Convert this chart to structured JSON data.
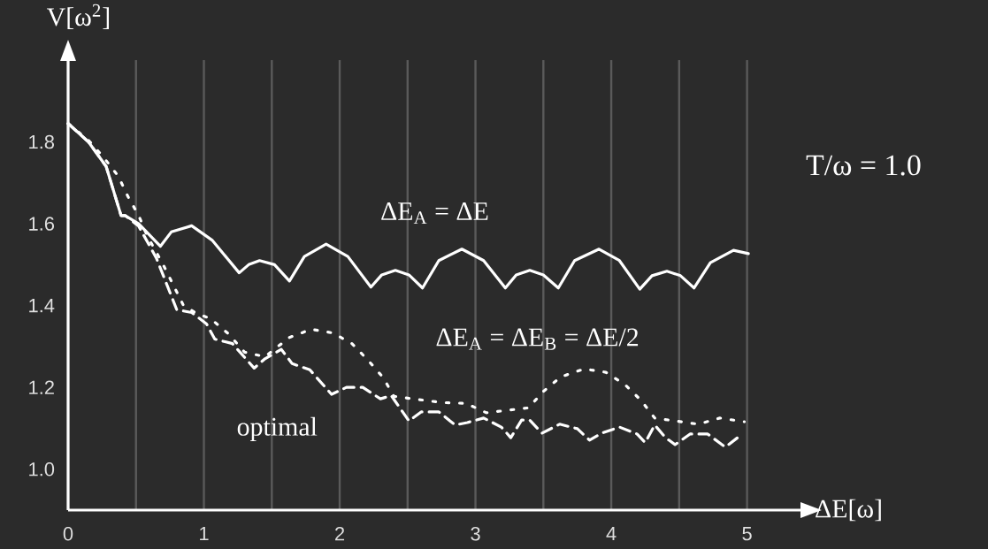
{
  "chart_data": {
    "type": "line",
    "xlabel": "ΔE[ω]",
    "ylabel": "V[ω$^{2}$]",
    "annotations": [
      "T/ω = 1.0"
    ],
    "xlim": [
      0,
      5.4
    ],
    "ylim": [
      0.9,
      2.0
    ],
    "xticks": [
      0,
      {
        "value": 0.5,
        "label": null
      },
      1,
      {
        "value": 1.5,
        "label": null
      },
      2,
      {
        "value": 2.5,
        "label": null
      },
      3,
      {
        "value": 3.5,
        "label": null
      },
      4,
      {
        "value": 4.5,
        "label": null
      },
      5
    ],
    "yticks": [
      {
        "value": 1.0,
        "label": "1.0"
      },
      1.2,
      1.4,
      1.6,
      1.8
    ],
    "grid": "x",
    "series": [
      {
        "name": "ΔE$_{A}$ = ΔE",
        "color": "#ffffff",
        "line_style": "solid",
        "x": [
          0,
          0.15,
          0.28,
          0.39,
          0.42,
          0.52,
          0.68,
          0.76,
          0.91,
          1.06,
          1.26,
          1.33,
          1.41,
          1.52,
          1.63,
          1.74,
          1.9,
          2.06,
          2.23,
          2.31,
          2.41,
          2.51,
          2.61,
          2.73,
          2.9,
          3.06,
          3.22,
          3.3,
          3.4,
          3.5,
          3.61,
          3.73,
          3.91,
          4.06,
          4.21,
          4.3,
          4.41,
          4.51,
          4.61,
          4.73,
          4.9,
          5.01
        ],
        "values": [
          1.845,
          1.8,
          1.74,
          1.62,
          1.62,
          1.6,
          1.545,
          1.58,
          1.595,
          1.56,
          1.48,
          1.5,
          1.51,
          1.5,
          1.46,
          1.52,
          1.55,
          1.52,
          1.445,
          1.475,
          1.486,
          1.475,
          1.443,
          1.51,
          1.538,
          1.51,
          1.443,
          1.475,
          1.486,
          1.475,
          1.443,
          1.51,
          1.538,
          1.51,
          1.44,
          1.473,
          1.484,
          1.473,
          1.443,
          1.505,
          1.535,
          1.527
        ]
      },
      {
        "name": "ΔE$_{A}$ = ΔE$_{B}$ = ΔE/2",
        "color": "#ffffff",
        "line_style": "dotted",
        "x": [
          0,
          0.15,
          0.26,
          0.37,
          0.44,
          0.52,
          0.58,
          0.7,
          0.85,
          0.95,
          1.05,
          1.18,
          1.3,
          1.45,
          1.63,
          1.79,
          1.95,
          2.09,
          2.21,
          2.32,
          2.4,
          2.75,
          2.93,
          3.08,
          3.39,
          3.5,
          3.63,
          3.8,
          3.96,
          4.1,
          4.22,
          4.32,
          4.64,
          4.8,
          4.98
        ],
        "values": [
          1.845,
          1.804,
          1.763,
          1.716,
          1.667,
          1.62,
          1.572,
          1.5,
          1.4,
          1.38,
          1.368,
          1.331,
          1.286,
          1.275,
          1.322,
          1.342,
          1.333,
          1.307,
          1.266,
          1.224,
          1.178,
          1.163,
          1.161,
          1.138,
          1.15,
          1.19,
          1.226,
          1.245,
          1.237,
          1.207,
          1.168,
          1.125,
          1.11,
          1.125,
          1.116
        ]
      },
      {
        "name": "optimal",
        "color": "#ffffff",
        "line_style": "dashed",
        "x": [
          0,
          0.15,
          0.28,
          0.39,
          0.42,
          0.52,
          0.65,
          0.8,
          0.91,
          1.02,
          1.08,
          1.21,
          1.37,
          1.45,
          1.57,
          1.65,
          1.78,
          1.94,
          2.05,
          2.17,
          2.3,
          2.38,
          2.51,
          2.6,
          2.73,
          2.85,
          2.94,
          3.06,
          3.19,
          3.26,
          3.34,
          3.4,
          3.49,
          3.62,
          3.75,
          3.84,
          3.93,
          4.06,
          4.19,
          4.25,
          4.32,
          4.4,
          4.47,
          4.58,
          4.71,
          4.84,
          4.93
        ],
        "values": [
          1.845,
          1.8,
          1.74,
          1.62,
          1.62,
          1.594,
          1.516,
          1.39,
          1.383,
          1.355,
          1.318,
          1.307,
          1.247,
          1.27,
          1.293,
          1.258,
          1.243,
          1.183,
          1.2,
          1.2,
          1.172,
          1.18,
          1.118,
          1.14,
          1.14,
          1.108,
          1.114,
          1.125,
          1.103,
          1.077,
          1.12,
          1.12,
          1.088,
          1.11,
          1.099,
          1.071,
          1.088,
          1.103,
          1.086,
          1.065,
          1.108,
          1.077,
          1.06,
          1.086,
          1.086,
          1.054,
          1.077
        ]
      }
    ]
  }
}
